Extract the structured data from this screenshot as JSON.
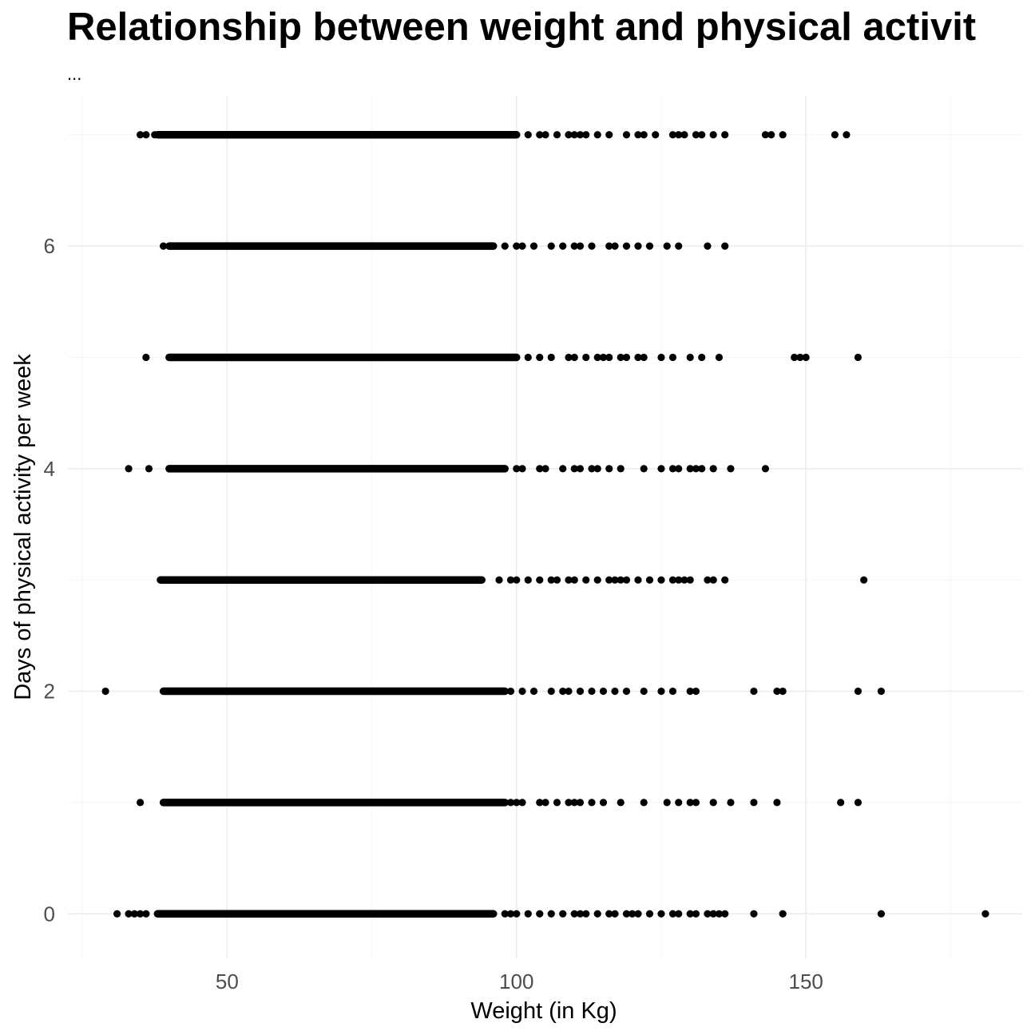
{
  "chart_data": {
    "type": "scatter",
    "title": "Relationship between weight and physical activit",
    "subtitle": "...",
    "xlabel": "Weight (in Kg)",
    "ylabel": "Days of physical activity per week",
    "xlim": [
      22.5,
      187.5
    ],
    "ylim": [
      -0.4,
      7.35
    ],
    "xticks": [
      50,
      100,
      150
    ],
    "yticks": [
      0,
      2,
      4,
      6
    ],
    "grid": true,
    "point_color": "#000000",
    "grid_major_color": "#ebebeb",
    "grid_minor_color": "#f5f5f5",
    "rows": [
      {
        "y": 7,
        "dense_range": [
          38,
          100
        ],
        "outliers": [
          35,
          36,
          37.5,
          102,
          104,
          105,
          107,
          109,
          110,
          111,
          112,
          114,
          116,
          119,
          121,
          122,
          124,
          127,
          128,
          129,
          131,
          132,
          134,
          136,
          143,
          144,
          146,
          155,
          157
        ]
      },
      {
        "y": 6,
        "dense_range": [
          40,
          96
        ],
        "outliers": [
          39,
          98,
          100,
          101,
          103,
          106,
          108,
          110,
          111,
          113,
          116,
          117,
          119,
          121,
          123,
          126,
          128,
          133,
          136
        ]
      },
      {
        "y": 5,
        "dense_range": [
          40,
          100
        ],
        "outliers": [
          36,
          102,
          104,
          106,
          109,
          110,
          112,
          114,
          115,
          116,
          118,
          119,
          121,
          122,
          125,
          127,
          130,
          132,
          135,
          148,
          149,
          150,
          159
        ]
      },
      {
        "y": 4,
        "dense_range": [
          40,
          98
        ],
        "outliers": [
          33,
          36.5,
          100,
          101,
          104,
          105,
          108,
          110,
          111,
          113,
          114,
          116,
          118,
          122,
          125,
          127,
          128,
          130,
          131,
          132,
          134,
          137,
          143
        ]
      },
      {
        "y": 3,
        "dense_range": [
          38.5,
          94
        ],
        "outliers": [
          97,
          99,
          100,
          102,
          104,
          106,
          107,
          109,
          110,
          112,
          114,
          116,
          117,
          118,
          119,
          121,
          123,
          125,
          127,
          128,
          129,
          130,
          133,
          134,
          136,
          160
        ]
      },
      {
        "y": 2,
        "dense_range": [
          39,
          98
        ],
        "outliers": [
          29,
          99,
          101,
          103,
          106,
          108,
          109,
          111,
          113,
          115,
          117,
          119,
          122,
          125,
          127,
          130,
          131,
          141,
          145,
          146,
          159,
          163
        ]
      },
      {
        "y": 1,
        "dense_range": [
          39,
          98
        ],
        "outliers": [
          35,
          99,
          100,
          101,
          104,
          105,
          107,
          109,
          110,
          111,
          113,
          115,
          118,
          122,
          126,
          128,
          130,
          131,
          134,
          137,
          141,
          145,
          156,
          159
        ]
      },
      {
        "y": 0,
        "dense_range": [
          38,
          96
        ],
        "outliers": [
          31,
          33,
          34,
          35,
          36,
          98,
          99,
          100,
          102,
          104,
          106,
          108,
          110,
          111,
          112,
          114,
          116,
          117,
          119,
          120,
          121,
          123,
          125,
          127,
          128,
          130,
          131,
          133,
          134,
          135,
          136,
          141,
          146,
          163,
          181
        ]
      }
    ]
  }
}
